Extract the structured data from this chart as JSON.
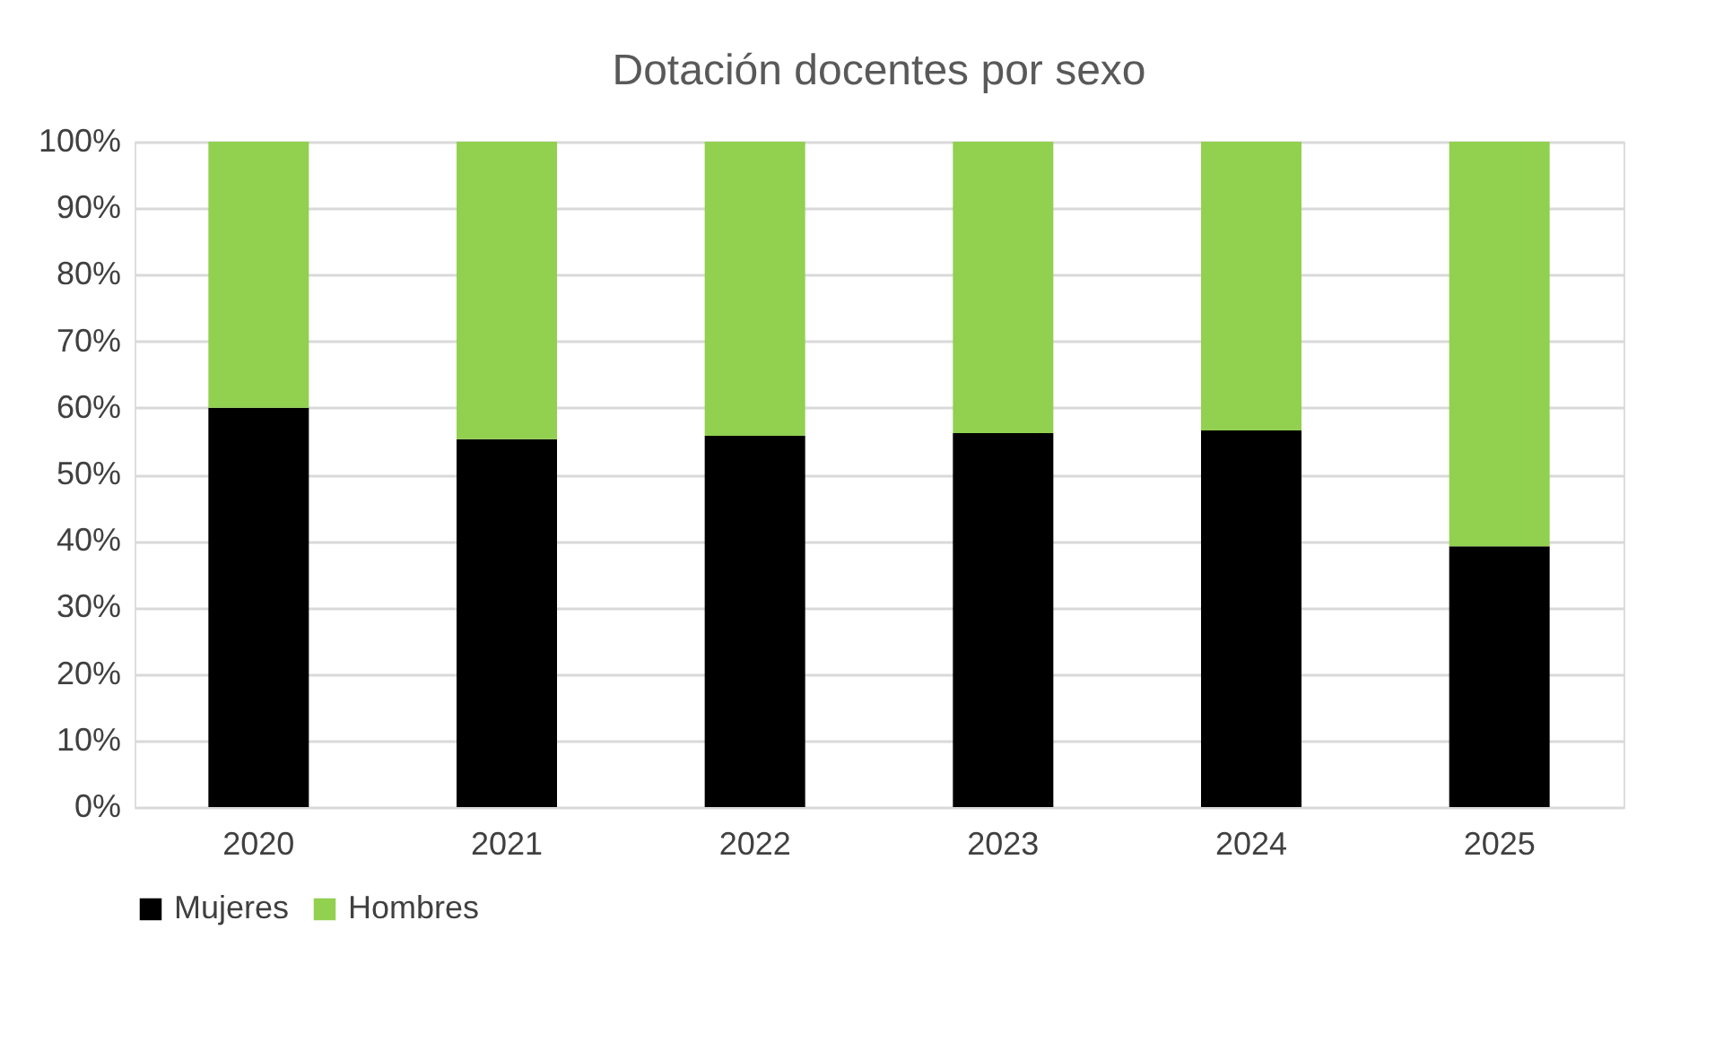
{
  "chart_data": {
    "type": "bar",
    "title": "Dotación docentes por sexo",
    "stacked": true,
    "categories": [
      "2020",
      "2021",
      "2022",
      "2023",
      "2024",
      "2025"
    ],
    "series": [
      {
        "name": "Mujeres",
        "color": "#000000",
        "values": [
          60,
          55.3,
          55.8,
          56.2,
          56.6,
          39.2
        ]
      },
      {
        "name": "Hombres",
        "color": "#92d050",
        "values": [
          40,
          44.7,
          44.2,
          43.8,
          43.4,
          60.8
        ]
      }
    ],
    "ylim": [
      0,
      100
    ],
    "yticks": [
      {
        "value": 0,
        "label": "0%"
      },
      {
        "value": 10,
        "label": "10%"
      },
      {
        "value": 20,
        "label": "20%"
      },
      {
        "value": 30,
        "label": "30%"
      },
      {
        "value": 40,
        "label": "40%"
      },
      {
        "value": 50,
        "label": "50%"
      },
      {
        "value": 60,
        "label": "60%"
      },
      {
        "value": 70,
        "label": "70%"
      },
      {
        "value": 80,
        "label": "80%"
      },
      {
        "value": 90,
        "label": "90%"
      },
      {
        "value": 100,
        "label": "100%"
      }
    ],
    "grid": "y",
    "legend": "bottom"
  }
}
